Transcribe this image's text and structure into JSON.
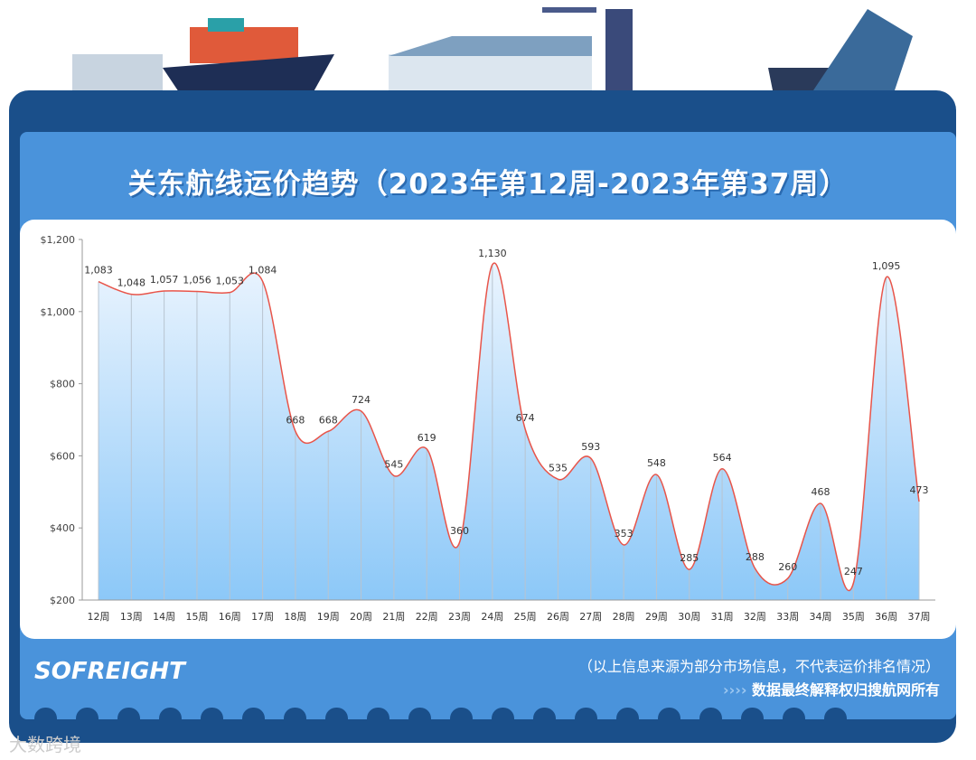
{
  "title": "关东航线运价趋势（2023年第12周-2023年第37周）",
  "footer": {
    "logo": "SOFREIGHT",
    "note": "（以上信息来源为部分市场信息，不代表运价排名情况）",
    "arrows": "››››",
    "rights": "数据最终解释权归搜航网所有"
  },
  "watermark": "大数跨境",
  "colors": {
    "frame": "#1a4f8a",
    "panel": "#4a93db",
    "line": "#e8554a",
    "area": "#8cc8f8"
  },
  "chart_data": {
    "type": "area",
    "categories": [
      "12周",
      "13周",
      "14周",
      "15周",
      "16周",
      "17周",
      "18周",
      "19周",
      "20周",
      "21周",
      "22周",
      "23周",
      "24周",
      "25周",
      "26周",
      "27周",
      "28周",
      "29周",
      "30周",
      "31周",
      "32周",
      "33周",
      "34周",
      "35周",
      "36周",
      "37周"
    ],
    "values": [
      1083,
      1048,
      1057,
      1056,
      1053,
      1084,
      668,
      668,
      724,
      545,
      619,
      360,
      1130,
      674,
      535,
      593,
      353,
      548,
      285,
      564,
      288,
      260,
      468,
      247,
      1095,
      473
    ],
    "labels": [
      "1,083",
      "1,048",
      "1,057",
      "1,056",
      "1,053",
      "1,084",
      "668",
      "668",
      "724",
      "545",
      "619",
      "360",
      "1,130",
      "674",
      "535",
      "593",
      "353",
      "548",
      "285",
      "564",
      "288",
      "260",
      "468",
      "247",
      "1,095",
      "473"
    ],
    "yticks": [
      "$200",
      "$400",
      "$600",
      "$800",
      "$1,000",
      "$1,200"
    ],
    "ylim": [
      200,
      1200
    ],
    "grid": false,
    "smooth": true
  }
}
